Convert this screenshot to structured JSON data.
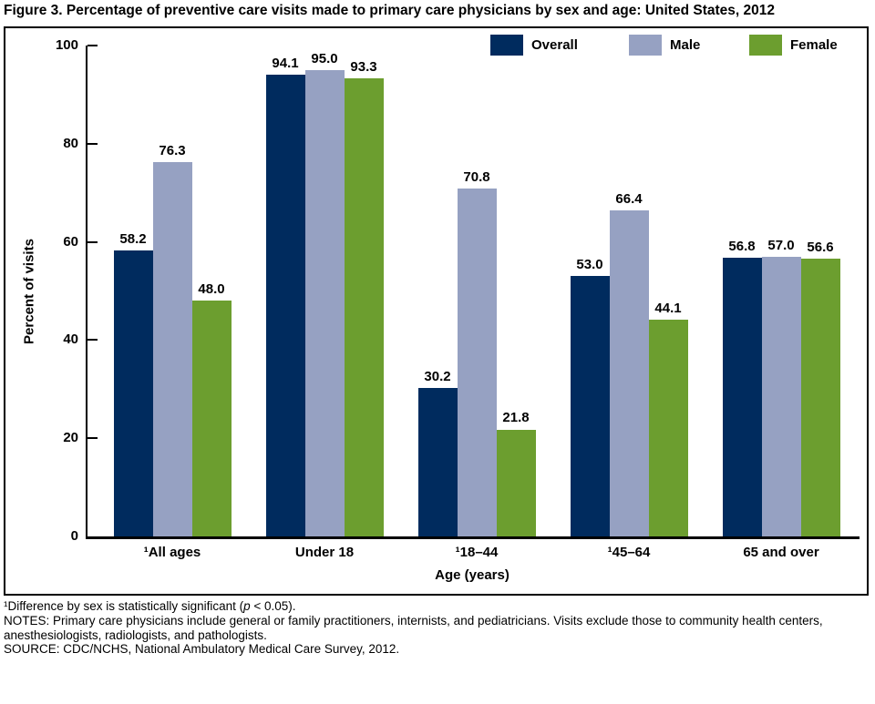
{
  "chart_data": {
    "type": "bar",
    "title": "Figure 3. Percentage of preventive care visits made to primary care physicians by sex and age: United States, 2012",
    "categories": [
      "¹All ages",
      "Under 18",
      "¹18–44",
      "¹45–64",
      "65 and over"
    ],
    "series": [
      {
        "name": "Overall",
        "color": "#002b5e",
        "values": [
          58.2,
          94.1,
          30.2,
          53.0,
          56.8
        ]
      },
      {
        "name": "Male",
        "color": "#96a1c2",
        "values": [
          76.3,
          95.0,
          70.8,
          66.4,
          57.0
        ]
      },
      {
        "name": "Female",
        "color": "#6c9e2f",
        "values": [
          48.0,
          93.3,
          21.8,
          44.1,
          56.6
        ]
      }
    ],
    "xlabel": "Age (years)",
    "ylabel": "Percent of visits",
    "ylim": [
      0,
      100
    ],
    "yticks": [
      0,
      20,
      40,
      60,
      80,
      100
    ],
    "grid": false,
    "legend_position": "top-right",
    "value_label_decimals": 1
  },
  "footnotes": {
    "line1_prefix": "¹Difference by sex is statistically significant (",
    "line1_italic": "p",
    "line1_suffix": " < 0.05).",
    "notes": "NOTES: Primary care physicians include general or family practitioners, internists, and pediatricians. Visits exclude those to community health centers, anesthesiologists, radiologists, and pathologists.",
    "source": "SOURCE: CDC/NCHS, National Ambulatory Medical Care Survey, 2012."
  }
}
